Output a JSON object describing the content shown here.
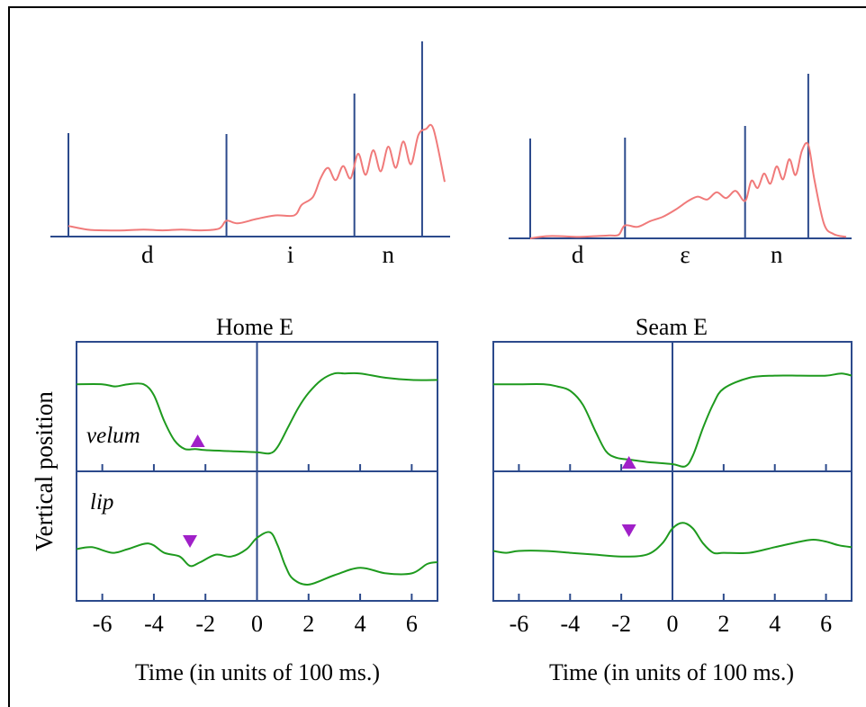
{
  "colors": {
    "frame": "#000000",
    "axis": "#2c4a8c",
    "audio": "#f07a7a",
    "articulator": "#1e9a1e",
    "marker": "#a020c8"
  },
  "chart_data": [
    {
      "type": "line",
      "panel": "audio-left",
      "segments": [
        "d",
        "i",
        "n"
      ],
      "boundaries": [
        0.0,
        0.42,
        0.76,
        0.94
      ],
      "x": [
        0.0,
        0.05,
        0.1,
        0.15,
        0.2,
        0.25,
        0.3,
        0.35,
        0.4,
        0.42,
        0.45,
        0.5,
        0.55,
        0.6,
        0.62,
        0.65,
        0.67,
        0.69,
        0.71,
        0.73,
        0.75,
        0.77,
        0.79,
        0.81,
        0.83,
        0.85,
        0.87,
        0.89,
        0.91,
        0.93,
        0.95,
        0.97,
        1.0
      ],
      "y": [
        0.12,
        0.08,
        0.07,
        0.07,
        0.08,
        0.07,
        0.08,
        0.07,
        0.09,
        0.18,
        0.15,
        0.2,
        0.24,
        0.24,
        0.36,
        0.45,
        0.66,
        0.78,
        0.64,
        0.8,
        0.66,
        0.94,
        0.7,
        0.98,
        0.74,
        1.02,
        0.78,
        1.08,
        0.82,
        1.15,
        1.22,
        1.22,
        0.62
      ]
    },
    {
      "type": "line",
      "panel": "audio-right",
      "segments": [
        "d",
        "ε",
        "n"
      ],
      "boundaries": [
        0.0,
        0.3,
        0.68,
        0.88
      ],
      "x": [
        0.0,
        0.05,
        0.1,
        0.15,
        0.2,
        0.25,
        0.28,
        0.3,
        0.34,
        0.38,
        0.42,
        0.46,
        0.5,
        0.53,
        0.56,
        0.59,
        0.62,
        0.65,
        0.68,
        0.7,
        0.72,
        0.74,
        0.76,
        0.78,
        0.8,
        0.82,
        0.84,
        0.86,
        0.88,
        0.9,
        0.93,
        0.96,
        1.0
      ],
      "y": [
        0.0,
        0.03,
        0.03,
        0.02,
        0.03,
        0.04,
        0.05,
        0.18,
        0.16,
        0.24,
        0.3,
        0.4,
        0.52,
        0.58,
        0.54,
        0.64,
        0.56,
        0.66,
        0.52,
        0.8,
        0.7,
        0.9,
        0.76,
        1.0,
        0.82,
        1.1,
        0.88,
        1.22,
        1.3,
        0.8,
        0.2,
        0.06,
        0.02
      ]
    },
    {
      "type": "line",
      "title": "Home E",
      "ylabel": "Vertical position",
      "xlabel": "Time (in units of 100 ms.)",
      "xlim": [
        -7,
        7
      ],
      "xticks": [
        -6,
        -4,
        -2,
        0,
        2,
        4,
        6
      ],
      "series": [
        {
          "label": "velum",
          "x": [
            -7,
            -6,
            -5.5,
            -5,
            -4.4,
            -4,
            -3.6,
            -3.2,
            -2.8,
            -2.4,
            -2,
            -1,
            0,
            0.5,
            0.8,
            1.2,
            1.6,
            2,
            2.5,
            3,
            3.4,
            4,
            5,
            6,
            7
          ],
          "y": [
            0.74,
            0.74,
            0.72,
            0.74,
            0.74,
            0.64,
            0.4,
            0.22,
            0.14,
            0.14,
            0.13,
            0.12,
            0.11,
            0.1,
            0.16,
            0.34,
            0.52,
            0.66,
            0.78,
            0.84,
            0.84,
            0.84,
            0.8,
            0.78,
            0.78
          ]
        },
        {
          "label": "lip",
          "x": [
            -7,
            -6.4,
            -5.6,
            -5,
            -4.2,
            -3.6,
            -3,
            -2.6,
            -2.2,
            -1.6,
            -1,
            -0.4,
            0,
            0.5,
            0.8,
            1.1,
            1.4,
            2,
            3,
            4,
            5,
            6,
            6.6,
            7
          ],
          "y": [
            0.4,
            0.42,
            0.36,
            0.4,
            0.46,
            0.36,
            0.32,
            0.22,
            0.26,
            0.34,
            0.32,
            0.4,
            0.52,
            0.58,
            0.44,
            0.22,
            0.08,
            0.02,
            0.12,
            0.2,
            0.14,
            0.14,
            0.24,
            0.26
          ]
        }
      ],
      "markers": [
        {
          "series": "velum",
          "x": -2.3,
          "shape": "triangle-up"
        },
        {
          "series": "lip",
          "x": -2.6,
          "shape": "triangle-down"
        }
      ]
    },
    {
      "type": "line",
      "title": "Seam E",
      "xlabel": "Time (in units of 100 ms.)",
      "xlim": [
        -7,
        7
      ],
      "xticks": [
        -6,
        -4,
        -2,
        0,
        2,
        4,
        6
      ],
      "series": [
        {
          "label": "",
          "x": [
            -7,
            -6,
            -5,
            -4.5,
            -4,
            -3.5,
            -3,
            -2.6,
            -2.2,
            -1.6,
            -1,
            0,
            0.5,
            0.8,
            1.2,
            1.6,
            2,
            3,
            4,
            5,
            6,
            6.6,
            7
          ],
          "y": [
            0.74,
            0.74,
            0.74,
            0.72,
            0.68,
            0.55,
            0.3,
            0.12,
            0.06,
            0.04,
            0.02,
            0.0,
            -0.02,
            0.08,
            0.34,
            0.56,
            0.7,
            0.8,
            0.82,
            0.82,
            0.82,
            0.84,
            0.82
          ]
        },
        {
          "label": "",
          "x": [
            -7,
            -6.5,
            -6,
            -5,
            -4,
            -3,
            -2,
            -1,
            -0.4,
            0,
            0.4,
            0.8,
            1.2,
            1.6,
            2,
            3,
            4,
            5,
            5.5,
            6,
            6.5,
            7
          ],
          "y": [
            0.38,
            0.36,
            0.38,
            0.38,
            0.36,
            0.34,
            0.32,
            0.34,
            0.46,
            0.62,
            0.68,
            0.62,
            0.46,
            0.36,
            0.36,
            0.36,
            0.42,
            0.48,
            0.5,
            0.48,
            0.44,
            0.42
          ]
        }
      ],
      "markers": [
        {
          "series": 0,
          "x": -1.7,
          "shape": "triangle-up"
        },
        {
          "series": 1,
          "x": -1.7,
          "shape": "triangle-down"
        }
      ]
    }
  ]
}
